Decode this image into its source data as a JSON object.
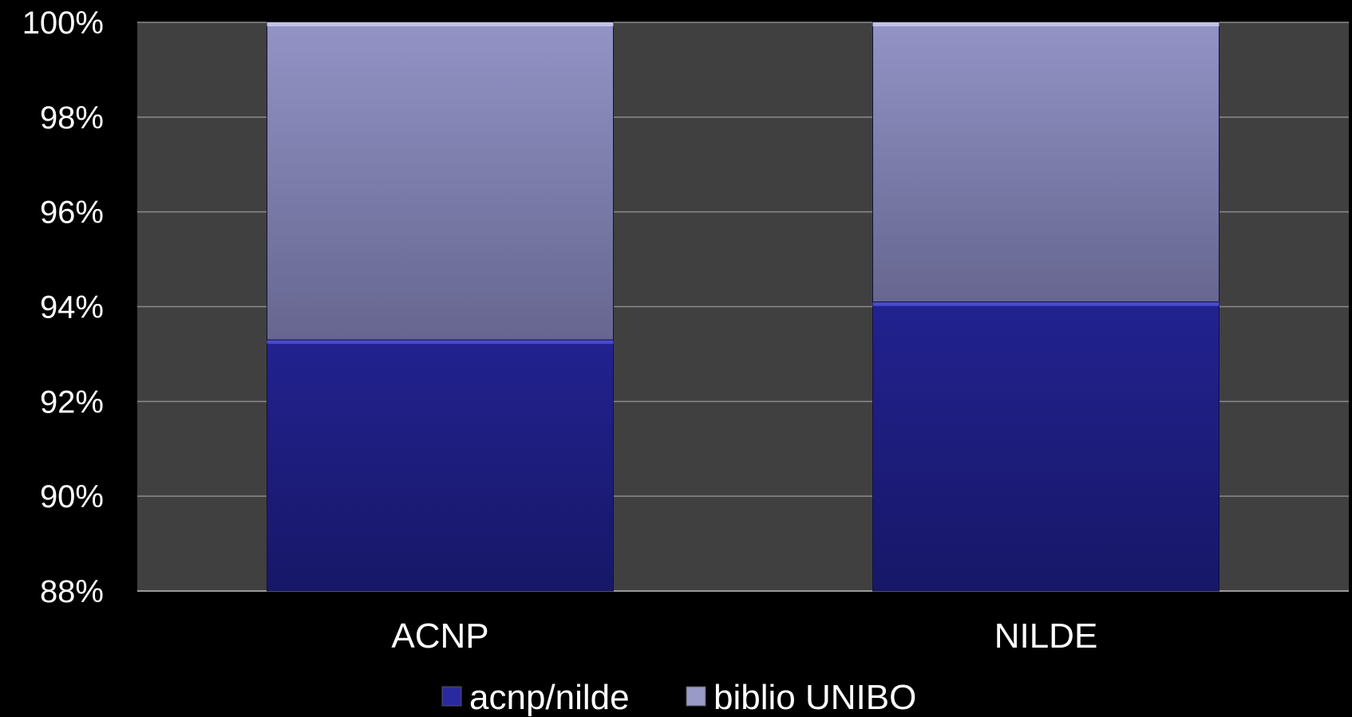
{
  "chart_data": {
    "type": "bar",
    "stacked": "percent",
    "categories": [
      "ACNP",
      "NILDE"
    ],
    "series": [
      {
        "name": "acnp/nilde",
        "values": [
          93.3,
          94.1
        ],
        "color": "#1e1e82"
      },
      {
        "name": "biblio UNIBO",
        "values": [
          6.7,
          5.9
        ],
        "color": "#8a8abb"
      }
    ],
    "ylim": [
      88,
      100
    ],
    "yticks": [
      88,
      90,
      92,
      94,
      96,
      98,
      100
    ],
    "tick_suffix": "%",
    "grid": true,
    "legend": "bottom",
    "title": "",
    "xlabel": "",
    "ylabel": ""
  }
}
